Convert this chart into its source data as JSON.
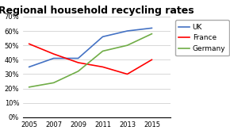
{
  "title": "Regional household recycling rates",
  "years": [
    2005,
    2007,
    2009,
    2011,
    2013,
    2015
  ],
  "series": [
    {
      "name": "UK",
      "color": "#4472C4",
      "values": [
        35,
        41,
        41,
        56,
        60,
        62
      ]
    },
    {
      "name": "France",
      "color": "#FF0000",
      "values": [
        51,
        44,
        38,
        35,
        30,
        40
      ]
    },
    {
      "name": "Germany",
      "color": "#70AD47",
      "values": [
        21,
        24,
        32,
        46,
        50,
        58
      ]
    }
  ],
  "ylim": [
    0,
    70
  ],
  "yticks": [
    0,
    10,
    20,
    30,
    40,
    50,
    60,
    70
  ],
  "background_color": "#ffffff",
  "grid_color": "#c8c8c8",
  "title_fontsize": 9,
  "legend_fontsize": 6.5,
  "tick_fontsize": 6
}
